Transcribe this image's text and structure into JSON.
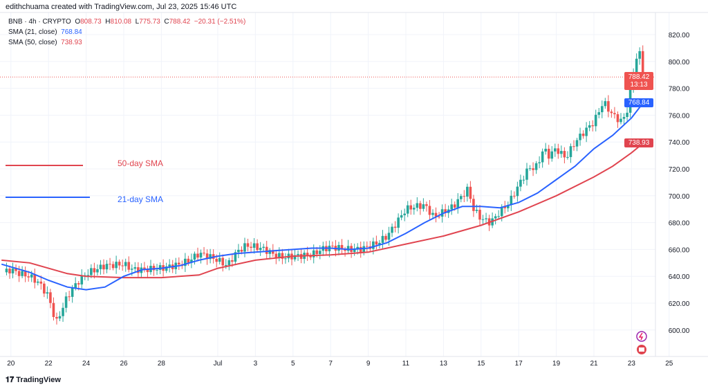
{
  "header": {
    "credit": "edithchuama created with TradingView.com, Jul 23, 2025 15:46 UTC"
  },
  "legend": {
    "symbol": "BNB · 4h · CRYPTO",
    "o_label": "O",
    "o": "808.73",
    "h_label": "H",
    "h": "810.08",
    "l_label": "L",
    "l": "775.73",
    "c_label": "C",
    "c": "788.42",
    "change": "−20.31 (−2.51%)",
    "sma21_label": "SMA (21, close)",
    "sma21": "768.84",
    "sma50_label": "SMA (50, close)",
    "sma50": "738.93"
  },
  "tags": {
    "price": "788.42",
    "countdown": "13:13",
    "sma21": "768.84",
    "sma50": "738.93"
  },
  "annotations": {
    "sma50": "50-day SMA",
    "sma21": "21-day SMA"
  },
  "footer": {
    "logo": "TradingView"
  },
  "colors": {
    "up": "#26a69a",
    "down": "#ef5350",
    "sma21": "#2962ff",
    "sma50": "#e0444f"
  },
  "chart_data": {
    "type": "candlestick",
    "y_ticks": [
      600,
      620,
      640,
      660,
      680,
      700,
      720,
      740,
      760,
      780,
      800,
      820
    ],
    "y_tick_labels": [
      "600.00",
      "620.00",
      "640.00",
      "660.00",
      "680.00",
      "700.00",
      "720.00",
      "740.00",
      "760.00",
      "780.00",
      "800.00",
      "820.00"
    ],
    "x_ticks": [
      {
        "t": -11,
        "label": "20"
      },
      {
        "t": -9,
        "label": "22"
      },
      {
        "t": -7,
        "label": "24"
      },
      {
        "t": -5,
        "label": "26"
      },
      {
        "t": -3,
        "label": "28"
      },
      {
        "t": 0,
        "label": "Jul"
      },
      {
        "t": 2,
        "label": "3"
      },
      {
        "t": 4,
        "label": "5"
      },
      {
        "t": 6,
        "label": "7"
      },
      {
        "t": 8,
        "label": "9"
      },
      {
        "t": 10,
        "label": "11"
      },
      {
        "t": 12,
        "label": "13"
      },
      {
        "t": 14,
        "label": "15"
      },
      {
        "t": 16,
        "label": "17"
      },
      {
        "t": 18,
        "label": "19"
      },
      {
        "t": 20,
        "label": "21"
      },
      {
        "t": 22,
        "label": "23"
      },
      {
        "t": 24,
        "label": "25"
      }
    ],
    "x_unit": "days from Jul 1",
    "close_path": [
      [
        -11.4,
        643
      ],
      [
        -11,
        645
      ],
      [
        -10.5,
        642
      ],
      [
        -10,
        640
      ],
      [
        -9.5,
        635
      ],
      [
        -9,
        625
      ],
      [
        -8.6,
        605
      ],
      [
        -8.3,
        615
      ],
      [
        -8,
        625
      ],
      [
        -7.5,
        635
      ],
      [
        -7,
        642
      ],
      [
        -6.5,
        645
      ],
      [
        -6,
        648
      ],
      [
        -5,
        649
      ],
      [
        -4.5,
        645
      ],
      [
        -4,
        645
      ],
      [
        -3,
        646
      ],
      [
        -2,
        649
      ],
      [
        -1.5,
        652
      ],
      [
        -1,
        657
      ],
      [
        -0.5,
        655
      ],
      [
        0,
        652
      ],
      [
        0.5,
        648
      ],
      [
        1,
        658
      ],
      [
        1.5,
        663
      ],
      [
        2,
        662
      ],
      [
        2.5,
        660
      ],
      [
        3,
        656
      ],
      [
        3.5,
        654
      ],
      [
        4,
        655
      ],
      [
        5,
        656
      ],
      [
        5.5,
        660
      ],
      [
        6,
        662
      ],
      [
        7,
        660
      ],
      [
        7.5,
        660
      ],
      [
        8,
        662
      ],
      [
        8.5,
        665
      ],
      [
        9,
        670
      ],
      [
        9.5,
        680
      ],
      [
        10,
        690
      ],
      [
        10.5,
        692
      ],
      [
        11,
        693
      ],
      [
        11.5,
        684
      ],
      [
        12,
        688
      ],
      [
        12.5,
        692
      ],
      [
        13,
        700
      ],
      [
        13.3,
        705
      ],
      [
        13.6,
        690
      ],
      [
        14,
        683
      ],
      [
        14.5,
        680
      ],
      [
        15,
        688
      ],
      [
        15.5,
        695
      ],
      [
        16,
        708
      ],
      [
        16.5,
        720
      ],
      [
        17,
        722
      ],
      [
        17.3,
        735
      ],
      [
        17.6,
        730
      ],
      [
        18,
        735
      ],
      [
        18.5,
        728
      ],
      [
        19,
        740
      ],
      [
        19.5,
        748
      ],
      [
        20,
        755
      ],
      [
        20.5,
        770
      ],
      [
        21,
        760
      ],
      [
        21.5,
        755
      ],
      [
        21.8,
        765
      ],
      [
        22,
        785
      ],
      [
        22.2,
        800
      ],
      [
        22.4,
        808.73
      ],
      [
        22.6,
        788.42
      ]
    ],
    "sma21": [
      [
        -11.5,
        649
      ],
      [
        -10,
        643
      ],
      [
        -9,
        637
      ],
      [
        -8,
        632
      ],
      [
        -7,
        630
      ],
      [
        -6,
        632
      ],
      [
        -5,
        640
      ],
      [
        -4,
        645
      ],
      [
        -3,
        646
      ],
      [
        -2,
        648
      ],
      [
        -1,
        652
      ],
      [
        0,
        655
      ],
      [
        1,
        657
      ],
      [
        2,
        658
      ],
      [
        3,
        659
      ],
      [
        4,
        660
      ],
      [
        5,
        661
      ],
      [
        6,
        661
      ],
      [
        7,
        660
      ],
      [
        8,
        661
      ],
      [
        9,
        665
      ],
      [
        10,
        672
      ],
      [
        11,
        680
      ],
      [
        12,
        687
      ],
      [
        13,
        692
      ],
      [
        14,
        692
      ],
      [
        15,
        691
      ],
      [
        16,
        695
      ],
      [
        17,
        702
      ],
      [
        18,
        712
      ],
      [
        19,
        722
      ],
      [
        20,
        735
      ],
      [
        21,
        745
      ],
      [
        22,
        758
      ],
      [
        22.6,
        768.84
      ]
    ],
    "sma50": [
      [
        -11.5,
        652
      ],
      [
        -10,
        650
      ],
      [
        -9,
        646
      ],
      [
        -8,
        642
      ],
      [
        -7,
        640
      ],
      [
        -5,
        639
      ],
      [
        -3,
        639
      ],
      [
        -1,
        641
      ],
      [
        0,
        646
      ],
      [
        2,
        652
      ],
      [
        4,
        655
      ],
      [
        6,
        656
      ],
      [
        8,
        658
      ],
      [
        10,
        664
      ],
      [
        12,
        670
      ],
      [
        14,
        678
      ],
      [
        16,
        688
      ],
      [
        18,
        700
      ],
      [
        20,
        714
      ],
      [
        21,
        722
      ],
      [
        22,
        732
      ],
      [
        22.6,
        738.93
      ]
    ]
  }
}
